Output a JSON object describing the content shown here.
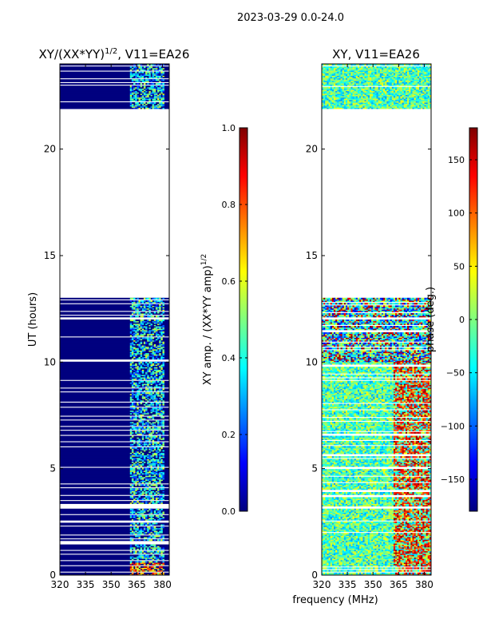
{
  "figure": {
    "suptitle": "2023-03-29 0.0-24.0",
    "xlabel": "frequency (MHz)"
  },
  "colors": {
    "jet": [
      "#00007f",
      "#0000ff",
      "#007fff",
      "#00ffff",
      "#7fff7f",
      "#ffff00",
      "#ff7f00",
      "#ff0000",
      "#7f0000"
    ],
    "background": "#ffffff"
  },
  "chart_data": [
    {
      "type": "heatmap",
      "id": "amp",
      "title_main": "XY/(XX*YY)",
      "title_sup": "1/2",
      "title_rest": ", V11=EA26",
      "ylabel": "UT (hours)",
      "xlim": [
        320,
        384
      ],
      "ylim": [
        0,
        24
      ],
      "xticks": [
        320,
        335,
        350,
        365,
        380
      ],
      "yticks": [
        0,
        5,
        10,
        15,
        20
      ],
      "blank_range_hours": [
        13.0,
        21.9
      ],
      "colorbar": {
        "label_main": "XY amp. / (XX*YY amp)",
        "label_sup": "1/2",
        "range": [
          0.0,
          1.0
        ],
        "ticks": [
          0.0,
          0.2,
          0.4,
          0.6,
          0.8,
          1.0
        ],
        "tick_labels": [
          "0.0",
          "0.2",
          "0.4",
          "0.6",
          "0.8",
          "1.0"
        ]
      }
    },
    {
      "type": "heatmap",
      "id": "phase",
      "title_main": "XY, V11=EA26",
      "ylabel": "",
      "xlim": [
        320,
        384
      ],
      "ylim": [
        0,
        24
      ],
      "xticks": [
        320,
        335,
        350,
        365,
        380
      ],
      "yticks": [
        0,
        5,
        10,
        15,
        20
      ],
      "blank_range_hours": [
        13.0,
        21.9
      ],
      "colorbar": {
        "label_main": "phase (deg.)",
        "range": [
          -180,
          180
        ],
        "ticks": [
          -150,
          -100,
          -50,
          0,
          50,
          100,
          150
        ],
        "tick_labels": [
          "−150",
          "−100",
          "−50",
          "0",
          "50",
          "100",
          "150"
        ]
      }
    }
  ]
}
